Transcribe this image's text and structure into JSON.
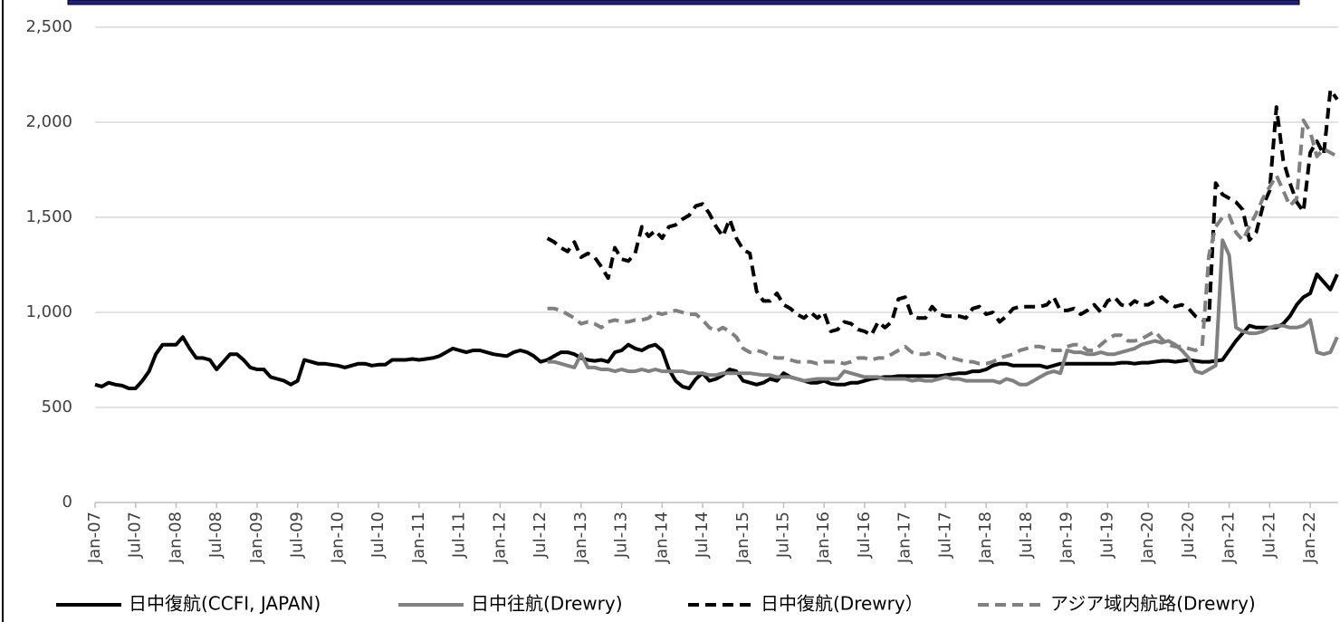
{
  "chart_data": {
    "type": "line",
    "categories": [
      "Jan-07",
      null,
      null,
      null,
      null,
      null,
      "Jul-07",
      null,
      null,
      null,
      null,
      null,
      "Jan-08",
      null,
      null,
      null,
      null,
      null,
      "Jul-08",
      null,
      null,
      null,
      null,
      null,
      "Jan-09",
      null,
      null,
      null,
      null,
      null,
      "Jul-09",
      null,
      null,
      null,
      null,
      null,
      "Jan-10",
      null,
      null,
      null,
      null,
      null,
      "Jul-10",
      null,
      null,
      null,
      null,
      null,
      "Jan-11",
      null,
      null,
      null,
      null,
      null,
      "Jul-11",
      null,
      null,
      null,
      null,
      null,
      "Jan-12",
      null,
      null,
      null,
      null,
      null,
      "Jul-12",
      null,
      null,
      null,
      null,
      null,
      "Jan-13",
      null,
      null,
      null,
      null,
      null,
      "Jul-13",
      null,
      null,
      null,
      null,
      null,
      "Jan-14",
      null,
      null,
      null,
      null,
      null,
      "Jul-14",
      null,
      null,
      null,
      null,
      null,
      "Jan-15",
      null,
      null,
      null,
      null,
      null,
      "Jul-15",
      null,
      null,
      null,
      null,
      null,
      "Jan-16",
      null,
      null,
      null,
      null,
      null,
      "Jul-16",
      null,
      null,
      null,
      null,
      null,
      "Jan-17",
      null,
      null,
      null,
      null,
      null,
      "Jul-17",
      null,
      null,
      null,
      null,
      null,
      "Jan-18",
      null,
      null,
      null,
      null,
      null,
      "Jul-18",
      null,
      null,
      null,
      null,
      null,
      "Jan-19",
      null,
      null,
      null,
      null,
      null,
      "Jul-19",
      null,
      null,
      null,
      null,
      null,
      "Jan-20",
      null,
      null,
      null,
      null,
      null,
      "Jul-20",
      null,
      null,
      null,
      null,
      null,
      "Jan-21",
      null,
      null,
      null,
      null,
      null,
      "Jul-21",
      null,
      null,
      null,
      null,
      null,
      "Jan-22",
      null,
      null,
      null,
      null
    ],
    "series": [
      {
        "name": "日中復航(CCFI, JAPAN)",
        "color": "#000000",
        "line_style": "solid",
        "values": [
          620,
          610,
          630,
          620,
          615,
          600,
          600,
          640,
          690,
          780,
          830,
          830,
          830,
          870,
          810,
          760,
          760,
          750,
          700,
          740,
          780,
          780,
          750,
          710,
          700,
          700,
          660,
          650,
          640,
          620,
          640,
          750,
          740,
          730,
          730,
          725,
          720,
          710,
          720,
          730,
          730,
          720,
          725,
          725,
          750,
          750,
          750,
          755,
          750,
          755,
          760,
          770,
          790,
          810,
          800,
          790,
          800,
          800,
          790,
          780,
          775,
          770,
          790,
          800,
          790,
          770,
          740,
          750,
          770,
          790,
          790,
          780,
          760,
          750,
          745,
          750,
          740,
          790,
          800,
          830,
          810,
          800,
          820,
          830,
          800,
          700,
          640,
          610,
          600,
          650,
          680,
          640,
          650,
          670,
          700,
          690,
          640,
          630,
          620,
          630,
          650,
          640,
          680,
          660,
          650,
          640,
          630,
          630,
          640,
          625,
          620,
          620,
          630,
          630,
          640,
          650,
          655,
          660,
          660,
          665,
          665,
          665,
          665,
          665,
          665,
          665,
          670,
          675,
          680,
          680,
          690,
          690,
          700,
          720,
          730,
          730,
          720,
          720,
          720,
          720,
          720,
          710,
          720,
          730,
          730,
          730,
          730,
          730,
          730,
          730,
          730,
          730,
          735,
          735,
          730,
          735,
          735,
          740,
          745,
          745,
          740,
          745,
          750,
          745,
          740,
          740,
          745,
          750,
          800,
          850,
          890,
          930,
          920,
          920,
          920,
          920,
          940,
          980,
          1040,
          1080,
          1100,
          1200,
          1160,
          1120,
          1200
        ]
      },
      {
        "name": "日中往航(Drewry)",
        "color": "#808080",
        "line_style": "solid",
        "values": [
          null,
          null,
          null,
          null,
          null,
          null,
          null,
          null,
          null,
          null,
          null,
          null,
          null,
          null,
          null,
          null,
          null,
          null,
          null,
          null,
          null,
          null,
          null,
          null,
          null,
          null,
          null,
          null,
          null,
          null,
          null,
          null,
          null,
          null,
          null,
          null,
          null,
          null,
          null,
          null,
          null,
          null,
          null,
          null,
          null,
          null,
          null,
          null,
          null,
          null,
          null,
          null,
          null,
          null,
          null,
          null,
          null,
          null,
          null,
          null,
          null,
          null,
          null,
          null,
          null,
          null,
          null,
          740,
          740,
          730,
          720,
          710,
          780,
          710,
          710,
          700,
          700,
          690,
          700,
          690,
          690,
          700,
          690,
          700,
          690,
          690,
          690,
          690,
          680,
          680,
          680,
          670,
          670,
          680,
          680,
          680,
          680,
          680,
          675,
          670,
          670,
          660,
          660,
          660,
          650,
          640,
          645,
          650,
          650,
          650,
          650,
          690,
          680,
          670,
          660,
          660,
          660,
          650,
          650,
          650,
          650,
          640,
          645,
          640,
          640,
          650,
          660,
          650,
          650,
          640,
          640,
          640,
          640,
          640,
          630,
          650,
          640,
          620,
          620,
          640,
          660,
          680,
          690,
          680,
          800,
          790,
          790,
          780,
          780,
          790,
          780,
          780,
          790,
          800,
          810,
          830,
          840,
          850,
          840,
          850,
          830,
          800,
          760,
          690,
          680,
          700,
          720,
          1380,
          1300,
          920,
          900,
          890,
          890,
          900,
          920,
          930,
          930,
          920,
          920,
          930,
          960,
          790,
          780,
          790,
          870
        ]
      },
      {
        "name": "日中復航(Drewry）",
        "color": "#000000",
        "line_style": "dashed",
        "values": [
          null,
          null,
          null,
          null,
          null,
          null,
          null,
          null,
          null,
          null,
          null,
          null,
          null,
          null,
          null,
          null,
          null,
          null,
          null,
          null,
          null,
          null,
          null,
          null,
          null,
          null,
          null,
          null,
          null,
          null,
          null,
          null,
          null,
          null,
          null,
          null,
          null,
          null,
          null,
          null,
          null,
          null,
          null,
          null,
          null,
          null,
          null,
          null,
          null,
          null,
          null,
          null,
          null,
          null,
          null,
          null,
          null,
          null,
          null,
          null,
          null,
          null,
          null,
          null,
          null,
          null,
          null,
          1390,
          1370,
          1340,
          1320,
          1370,
          1290,
          1310,
          1290,
          1240,
          1180,
          1340,
          1280,
          1270,
          1310,
          1450,
          1400,
          1430,
          1390,
          1450,
          1460,
          1490,
          1510,
          1560,
          1570,
          1520,
          1450,
          1400,
          1490,
          1390,
          1330,
          1310,
          1110,
          1060,
          1060,
          1100,
          1040,
          1020,
          990,
          970,
          1000,
          970,
          1000,
          900,
          910,
          950,
          940,
          910,
          900,
          880,
          950,
          920,
          950,
          1070,
          1080,
          980,
          970,
          970,
          1030,
          990,
          980,
          980,
          980,
          970,
          1020,
          1030,
          990,
          1000,
          950,
          980,
          1020,
          1030,
          1030,
          1030,
          1030,
          1040,
          1080,
          1010,
          1010,
          1020,
          990,
          1010,
          1040,
          1000,
          1060,
          1080,
          1040,
          1030,
          1060,
          1040,
          1040,
          1060,
          1080,
          1050,
          1030,
          1040,
          1020,
          980,
          960,
          960,
          1680,
          1620,
          1600,
          1580,
          1540,
          1380,
          1420,
          1560,
          1640,
          2080,
          1800,
          1680,
          1580,
          1530,
          1840,
          1900,
          1830,
          2170,
          2120
        ]
      },
      {
        "name": "アジア域内航路(Drewry)",
        "color": "#808080",
        "line_style": "dashed",
        "values": [
          null,
          null,
          null,
          null,
          null,
          null,
          null,
          null,
          null,
          null,
          null,
          null,
          null,
          null,
          null,
          null,
          null,
          null,
          null,
          null,
          null,
          null,
          null,
          null,
          null,
          null,
          null,
          null,
          null,
          null,
          null,
          null,
          null,
          null,
          null,
          null,
          null,
          null,
          null,
          null,
          null,
          null,
          null,
          null,
          null,
          null,
          null,
          null,
          null,
          null,
          null,
          null,
          null,
          null,
          null,
          null,
          null,
          null,
          null,
          null,
          null,
          null,
          null,
          null,
          null,
          null,
          null,
          1020,
          1020,
          1010,
          990,
          970,
          940,
          950,
          940,
          920,
          950,
          960,
          950,
          950,
          960,
          960,
          970,
          1000,
          990,
          1000,
          1010,
          1000,
          990,
          990,
          960,
          920,
          900,
          920,
          900,
          870,
          810,
          790,
          800,
          790,
          770,
          760,
          760,
          750,
          740,
          740,
          740,
          730,
          740,
          740,
          740,
          730,
          740,
          760,
          760,
          750,
          760,
          760,
          780,
          800,
          820,
          790,
          780,
          780,
          790,
          780,
          760,
          760,
          750,
          740,
          740,
          730,
          730,
          740,
          760,
          770,
          780,
          800,
          810,
          820,
          820,
          810,
          800,
          800,
          820,
          830,
          830,
          800,
          800,
          830,
          860,
          880,
          880,
          850,
          850,
          860,
          880,
          900,
          860,
          830,
          820,
          820,
          810,
          800,
          820,
          1300,
          1450,
          1500,
          1510,
          1420,
          1380,
          1450,
          1520,
          1600,
          1660,
          1720,
          1640,
          1560,
          1600,
          2010,
          1950,
          1820,
          1860,
          1840,
          1820
        ]
      }
    ],
    "ylim": [
      0,
      2500
    ],
    "yticks": [
      0,
      500,
      {
        "value": 1000,
        "label": "1,000"
      },
      {
        "value": 1500,
        "label": "1,500"
      },
      {
        "value": 2000,
        "label": "2,000"
      },
      {
        "value": 2500,
        "label": "2,500"
      }
    ],
    "grid": true,
    "legend": "bottom"
  }
}
